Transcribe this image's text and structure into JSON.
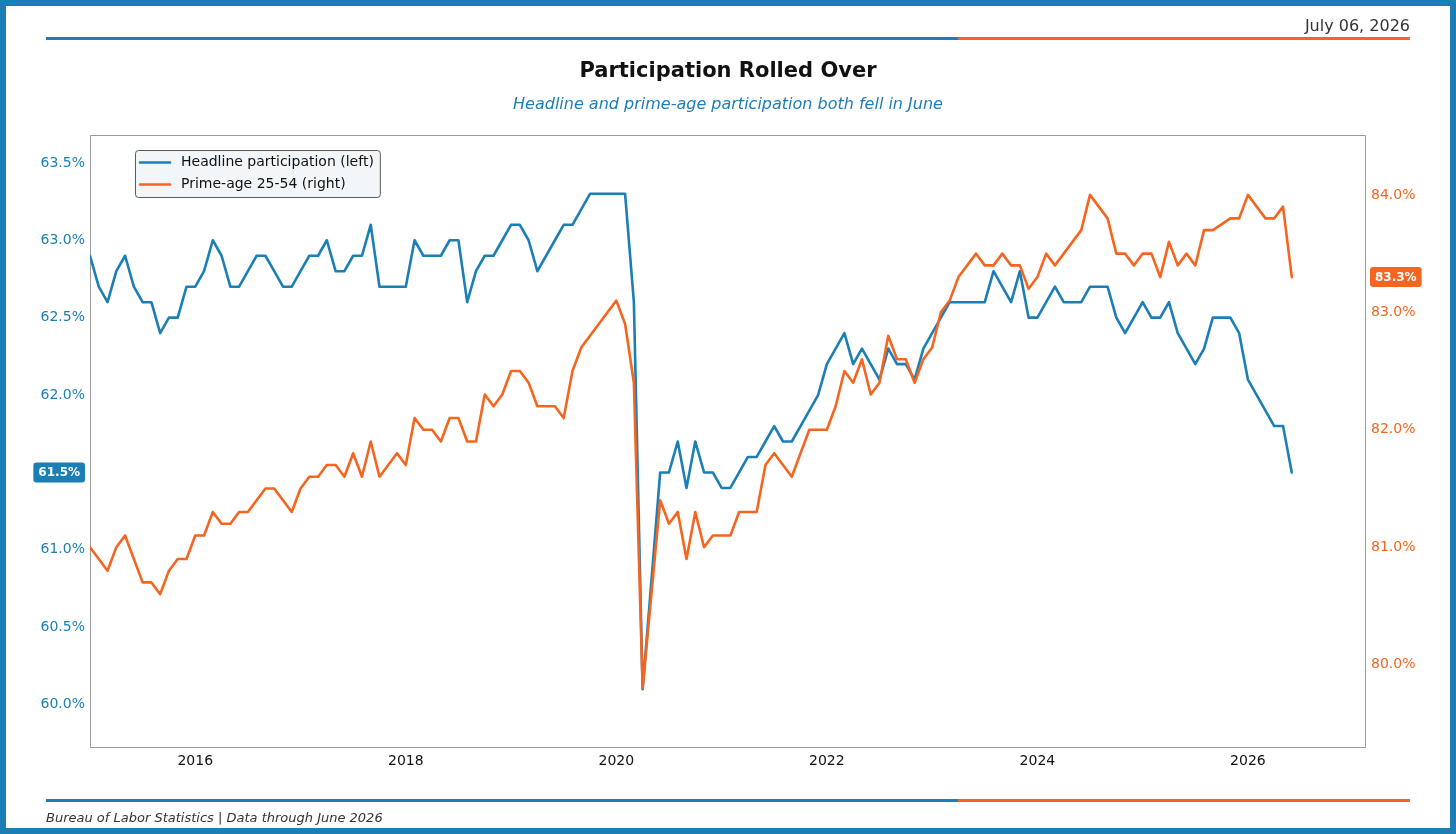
{
  "chart_data": {
    "type": "line",
    "title": "Participation Rolled Over",
    "subtitle": "Headline and prime-age participation both fell in June",
    "annotations": [
      "July 06, 2026",
      "Bureau of Labor Statistics | Data through June 2026"
    ],
    "x": [
      "2015-01",
      "2015-02",
      "2015-03",
      "2015-04",
      "2015-05",
      "2015-06",
      "2015-07",
      "2015-08",
      "2015-09",
      "2015-10",
      "2015-11",
      "2015-12",
      "2016-01",
      "2016-02",
      "2016-03",
      "2016-04",
      "2016-05",
      "2016-06",
      "2016-07",
      "2016-08",
      "2016-09",
      "2016-10",
      "2016-11",
      "2016-12",
      "2017-01",
      "2017-02",
      "2017-03",
      "2017-04",
      "2017-05",
      "2017-06",
      "2017-07",
      "2017-08",
      "2017-09",
      "2017-10",
      "2017-11",
      "2017-12",
      "2018-01",
      "2018-02",
      "2018-03",
      "2018-04",
      "2018-05",
      "2018-06",
      "2018-07",
      "2018-08",
      "2018-09",
      "2018-10",
      "2018-11",
      "2018-12",
      "2019-01",
      "2019-02",
      "2019-03",
      "2019-04",
      "2019-05",
      "2019-06",
      "2019-07",
      "2019-08",
      "2019-09",
      "2019-10",
      "2019-11",
      "2019-12",
      "2020-01",
      "2020-02",
      "2020-03",
      "2020-04",
      "2020-05",
      "2020-06",
      "2020-07",
      "2020-08",
      "2020-09",
      "2020-10",
      "2020-11",
      "2020-12",
      "2021-01",
      "2021-02",
      "2021-03",
      "2021-04",
      "2021-05",
      "2021-06",
      "2021-07",
      "2021-08",
      "2021-09",
      "2021-10",
      "2021-11",
      "2021-12",
      "2022-01",
      "2022-02",
      "2022-03",
      "2022-04",
      "2022-05",
      "2022-06",
      "2022-07",
      "2022-08",
      "2022-09",
      "2022-10",
      "2022-11",
      "2022-12",
      "2023-01",
      "2023-02",
      "2023-03",
      "2023-04",
      "2023-05",
      "2023-06",
      "2023-07",
      "2023-08",
      "2023-09",
      "2023-10",
      "2023-11",
      "2023-12",
      "2024-01",
      "2024-02",
      "2024-03",
      "2024-04",
      "2024-05",
      "2024-06",
      "2024-07",
      "2024-08",
      "2024-09",
      "2024-10",
      "2024-11",
      "2024-12",
      "2025-01",
      "2025-02",
      "2025-03",
      "2025-04",
      "2025-05",
      "2025-06",
      "2025-07",
      "2025-08",
      "2025-09",
      "2025-11",
      "2025-12",
      "2026-01",
      "2026-02",
      "2026-03",
      "2026-04",
      "2026-05",
      "2026-06"
    ],
    "xlim": [
      "2015-01",
      "2027-02-15"
    ],
    "xticks": [
      "2016",
      "2018",
      "2020",
      "2022",
      "2024",
      "2026"
    ],
    "ylim": [
      59.72,
      63.68
    ],
    "yticks": [
      {
        "value": 60,
        "label": "60.0%"
      },
      {
        "value": 60.5,
        "label": "60.5%"
      },
      {
        "value": 61,
        "label": "61.0%"
      },
      {
        "value": 61.5,
        "label": "61.5%"
      },
      {
        "value": 62,
        "label": "62.0%"
      },
      {
        "value": 62.5,
        "label": "62.5%"
      },
      {
        "value": 63,
        "label": "63.0%"
      },
      {
        "value": 63.5,
        "label": "63.5%"
      }
    ],
    "y2lim": [
      79.29,
      84.51
    ],
    "y2ticks": [
      {
        "value": 80,
        "label": "80.0%"
      },
      {
        "value": 81,
        "label": "81.0%"
      },
      {
        "value": 82,
        "label": "82.0%"
      },
      {
        "value": 83,
        "label": "83.0%"
      },
      {
        "value": 83.3,
        "label": "83.3%"
      },
      {
        "value": 84,
        "label": "84.0%"
      }
    ],
    "legend": "top left",
    "series": [
      {
        "name": "Headline participation (left)",
        "color": "#1b7fb5",
        "values": [
          62.9,
          62.7,
          62.6,
          62.8,
          62.9,
          62.7,
          62.6,
          62.6,
          62.4,
          62.5,
          62.5,
          62.7,
          62.7,
          62.8,
          63.0,
          62.9,
          62.7,
          62.7,
          62.8,
          62.9,
          62.9,
          62.8,
          62.7,
          62.7,
          62.8,
          62.9,
          62.9,
          63.0,
          62.8,
          62.8,
          62.9,
          62.9,
          63.1,
          62.7,
          62.7,
          62.7,
          62.7,
          63.0,
          62.9,
          62.9,
          62.9,
          63.0,
          63.0,
          62.6,
          62.8,
          62.9,
          62.9,
          63.0,
          63.1,
          63.1,
          63.0,
          62.8,
          62.9,
          63.0,
          63.1,
          63.1,
          63.2,
          63.3,
          63.3,
          63.3,
          63.3,
          63.3,
          62.6,
          60.1,
          60.8,
          61.5,
          61.5,
          61.7,
          61.4,
          61.7,
          61.5,
          61.5,
          61.4,
          61.4,
          61.5,
          61.6,
          61.6,
          61.7,
          61.8,
          61.7,
          61.7,
          61.8,
          61.9,
          62.0,
          62.2,
          62.3,
          62.4,
          62.2,
          62.3,
          62.2,
          62.1,
          62.3,
          62.2,
          62.2,
          62.1,
          62.3,
          62.4,
          62.5,
          62.6,
          62.6,
          62.6,
          62.6,
          62.6,
          62.8,
          62.7,
          62.6,
          62.8,
          62.5,
          62.5,
          62.6,
          62.7,
          62.6,
          62.6,
          62.6,
          62.7,
          62.7,
          62.7,
          62.5,
          62.4,
          62.5,
          62.6,
          62.5,
          62.5,
          62.6,
          62.4,
          62.3,
          62.2,
          62.3,
          62.5,
          62.5,
          62.4,
          62.1,
          62.0,
          61.9,
          61.8,
          61.8,
          61.5
        ]
      },
      {
        "name": "Prime-age 25-54 (right)",
        "color": "#f4661f",
        "axis": "y2",
        "values": [
          81.0,
          80.9,
          80.8,
          81.0,
          81.1,
          80.9,
          80.7,
          80.7,
          80.6,
          80.8,
          80.9,
          80.9,
          81.1,
          81.1,
          81.3,
          81.2,
          81.2,
          81.3,
          81.3,
          81.4,
          81.5,
          81.5,
          81.4,
          81.3,
          81.5,
          81.6,
          81.6,
          81.7,
          81.7,
          81.6,
          81.8,
          81.6,
          81.9,
          81.6,
          81.7,
          81.8,
          81.7,
          82.1,
          82.0,
          82.0,
          81.9,
          82.1,
          82.1,
          81.9,
          81.9,
          82.3,
          82.2,
          82.3,
          82.5,
          82.5,
          82.4,
          82.2,
          82.2,
          82.2,
          82.1,
          82.5,
          82.7,
          82.8,
          82.9,
          83.0,
          83.1,
          82.9,
          82.4,
          79.8,
          80.6,
          81.4,
          81.2,
          81.3,
          80.9,
          81.3,
          81.0,
          81.1,
          81.1,
          81.1,
          81.3,
          81.3,
          81.3,
          81.7,
          81.8,
          81.7,
          81.6,
          81.8,
          82.0,
          82.0,
          82.0,
          82.2,
          82.5,
          82.4,
          82.6,
          82.3,
          82.4,
          82.8,
          82.6,
          82.6,
          82.4,
          82.6,
          82.7,
          83.0,
          83.1,
          83.3,
          83.4,
          83.5,
          83.4,
          83.4,
          83.5,
          83.4,
          83.4,
          83.2,
          83.3,
          83.5,
          83.4,
          83.5,
          83.6,
          83.7,
          84.0,
          83.9,
          83.8,
          83.5,
          83.5,
          83.4,
          83.5,
          83.5,
          83.3,
          83.6,
          83.4,
          83.5,
          83.4,
          83.7,
          83.7,
          83.8,
          83.8,
          84.0,
          83.9,
          83.8,
          83.8,
          83.9,
          83.3
        ]
      }
    ]
  }
}
